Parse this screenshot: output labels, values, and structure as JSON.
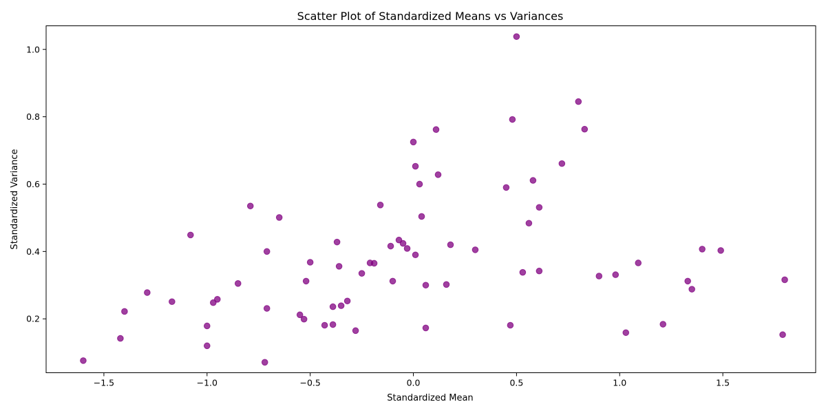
{
  "chart_data": {
    "type": "scatter",
    "title": "Scatter Plot of Standardized Means vs Variances",
    "xlabel": "Standardized Mean",
    "ylabel": "Standardized Variance",
    "xlim": [
      -1.78,
      1.95
    ],
    "ylim": [
      0.04,
      1.07
    ],
    "x_ticks": [
      -1.5,
      -1.0,
      -0.5,
      0.0,
      0.5,
      1.0,
      1.5
    ],
    "x_tick_labels": [
      "−1.5",
      "−1.0",
      "−0.5",
      "0.0",
      "0.5",
      "1.0",
      "1.5"
    ],
    "y_ticks": [
      0.2,
      0.4,
      0.6,
      0.8,
      1.0
    ],
    "y_tick_labels": [
      "0.2",
      "0.4",
      "0.6",
      "0.8",
      "1.0"
    ],
    "grid": false,
    "point_color": "#800080",
    "point_opacity": 0.75,
    "points": [
      {
        "x": -1.6,
        "y": 0.076
      },
      {
        "x": -1.42,
        "y": 0.142
      },
      {
        "x": -1.4,
        "y": 0.222
      },
      {
        "x": -1.29,
        "y": 0.278
      },
      {
        "x": -1.17,
        "y": 0.251
      },
      {
        "x": -1.08,
        "y": 0.449
      },
      {
        "x": -1.0,
        "y": 0.12
      },
      {
        "x": -1.0,
        "y": 0.179
      },
      {
        "x": -0.97,
        "y": 0.248
      },
      {
        "x": -0.95,
        "y": 0.258
      },
      {
        "x": -0.85,
        "y": 0.305
      },
      {
        "x": -0.79,
        "y": 0.535
      },
      {
        "x": -0.72,
        "y": 0.071
      },
      {
        "x": -0.71,
        "y": 0.231
      },
      {
        "x": -0.71,
        "y": 0.4
      },
      {
        "x": -0.65,
        "y": 0.501
      },
      {
        "x": -0.55,
        "y": 0.212
      },
      {
        "x": -0.53,
        "y": 0.199
      },
      {
        "x": -0.52,
        "y": 0.312
      },
      {
        "x": -0.5,
        "y": 0.368
      },
      {
        "x": -0.43,
        "y": 0.181
      },
      {
        "x": -0.39,
        "y": 0.183
      },
      {
        "x": -0.39,
        "y": 0.236
      },
      {
        "x": -0.37,
        "y": 0.428
      },
      {
        "x": -0.36,
        "y": 0.356
      },
      {
        "x": -0.35,
        "y": 0.239
      },
      {
        "x": -0.32,
        "y": 0.253
      },
      {
        "x": -0.28,
        "y": 0.165
      },
      {
        "x": -0.25,
        "y": 0.335
      },
      {
        "x": -0.21,
        "y": 0.366
      },
      {
        "x": -0.19,
        "y": 0.365
      },
      {
        "x": -0.16,
        "y": 0.538
      },
      {
        "x": -0.11,
        "y": 0.416
      },
      {
        "x": -0.1,
        "y": 0.312
      },
      {
        "x": -0.07,
        "y": 0.434
      },
      {
        "x": -0.05,
        "y": 0.424
      },
      {
        "x": -0.03,
        "y": 0.409
      },
      {
        "x": 0.0,
        "y": 0.725
      },
      {
        "x": 0.01,
        "y": 0.39
      },
      {
        "x": 0.01,
        "y": 0.653
      },
      {
        "x": 0.03,
        "y": 0.6
      },
      {
        "x": 0.04,
        "y": 0.504
      },
      {
        "x": 0.06,
        "y": 0.173
      },
      {
        "x": 0.06,
        "y": 0.3
      },
      {
        "x": 0.11,
        "y": 0.762
      },
      {
        "x": 0.12,
        "y": 0.628
      },
      {
        "x": 0.16,
        "y": 0.302
      },
      {
        "x": 0.18,
        "y": 0.42
      },
      {
        "x": 0.3,
        "y": 0.405
      },
      {
        "x": 0.45,
        "y": 0.59
      },
      {
        "x": 0.47,
        "y": 0.181
      },
      {
        "x": 0.48,
        "y": 0.792
      },
      {
        "x": 0.5,
        "y": 1.038
      },
      {
        "x": 0.53,
        "y": 0.338
      },
      {
        "x": 0.56,
        "y": 0.484
      },
      {
        "x": 0.58,
        "y": 0.611
      },
      {
        "x": 0.61,
        "y": 0.531
      },
      {
        "x": 0.61,
        "y": 0.342
      },
      {
        "x": 0.72,
        "y": 0.661
      },
      {
        "x": 0.8,
        "y": 0.845
      },
      {
        "x": 0.83,
        "y": 0.763
      },
      {
        "x": 0.9,
        "y": 0.327
      },
      {
        "x": 0.98,
        "y": 0.331
      },
      {
        "x": 1.03,
        "y": 0.159
      },
      {
        "x": 1.09,
        "y": 0.366
      },
      {
        "x": 1.21,
        "y": 0.184
      },
      {
        "x": 1.33,
        "y": 0.312
      },
      {
        "x": 1.35,
        "y": 0.288
      },
      {
        "x": 1.4,
        "y": 0.407
      },
      {
        "x": 1.49,
        "y": 0.403
      },
      {
        "x": 1.79,
        "y": 0.153
      },
      {
        "x": 1.8,
        "y": 0.316
      }
    ]
  }
}
